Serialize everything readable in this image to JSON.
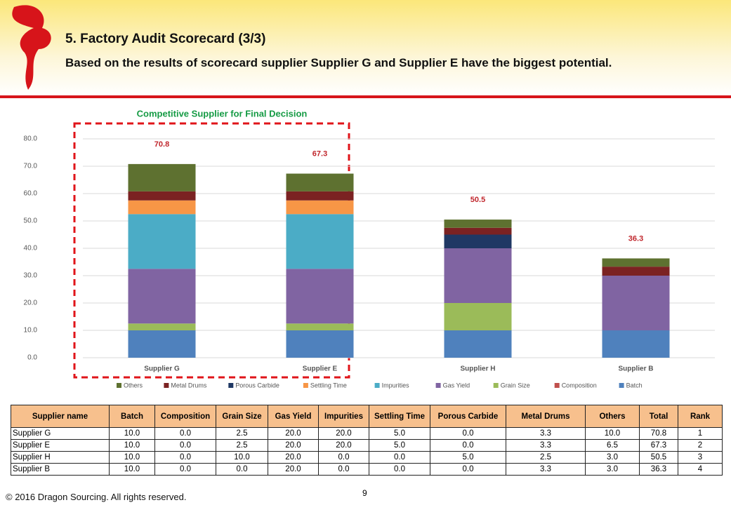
{
  "header": {
    "title": "5. Factory Audit Scorecard (3/3)",
    "subtitle": "Based on the results of scorecard supplier Supplier G and Supplier E have the biggest potential."
  },
  "chart_data": {
    "type": "stacked_bar",
    "title": "Competitive Supplier for Final Decision",
    "categories": [
      "Supplier G",
      "Supplier E",
      "Supplier H",
      "Supplier B"
    ],
    "series": [
      {
        "name": "Batch",
        "color": "#4f81bd",
        "values": [
          10.0,
          10.0,
          10.0,
          10.0
        ]
      },
      {
        "name": "Composition",
        "color": "#c0504d",
        "values": [
          0.0,
          0.0,
          0.0,
          0.0
        ]
      },
      {
        "name": "Grain Size",
        "color": "#9bbb59",
        "values": [
          2.5,
          2.5,
          10.0,
          0.0
        ]
      },
      {
        "name": "Gas Yield",
        "color": "#8064a2",
        "values": [
          20.0,
          20.0,
          20.0,
          20.0
        ]
      },
      {
        "name": "Impurities",
        "color": "#4bacc6",
        "values": [
          20.0,
          20.0,
          0.0,
          0.0
        ]
      },
      {
        "name": "Settling Time",
        "color": "#f79646",
        "values": [
          5.0,
          5.0,
          0.0,
          0.0
        ]
      },
      {
        "name": "Porous Carbide",
        "color": "#1f3864",
        "values": [
          0.0,
          0.0,
          5.0,
          0.0
        ]
      },
      {
        "name": "Metal Drums",
        "color": "#7b2222",
        "values": [
          3.3,
          3.3,
          2.5,
          3.3
        ]
      },
      {
        "name": "Others",
        "color": "#5e7130",
        "values": [
          10.0,
          6.5,
          3.0,
          3.0
        ]
      }
    ],
    "totals": [
      70.8,
      67.3,
      50.5,
      36.3
    ],
    "ylim": [
      0,
      80
    ],
    "yticks": [
      {
        "value": 0,
        "label": "0.0"
      },
      {
        "value": 10,
        "label": "10.0"
      },
      {
        "value": 20,
        "label": "20.0"
      },
      {
        "value": 30,
        "label": "30.0"
      },
      {
        "value": 40,
        "label": "40.0"
      },
      {
        "value": 50,
        "label": "50.0"
      },
      {
        "value": 60,
        "label": "60.0"
      },
      {
        "value": 70,
        "label": "70.0"
      },
      {
        "value": 80,
        "label": "80.0"
      }
    ],
    "grid": true
  },
  "table": {
    "header": [
      "Supplier name",
      "Batch",
      "Composition",
      "Grain Size",
      "Gas Yield",
      "Impurities",
      "Settling Time",
      "Porous Carbide",
      "Metal Drums",
      "Others",
      "Total",
      "Rank"
    ],
    "rows": [
      [
        "Supplier G",
        "10.0",
        "0.0",
        "2.5",
        "20.0",
        "20.0",
        "5.0",
        "0.0",
        "3.3",
        "10.0",
        "70.8",
        "1"
      ],
      [
        "Supplier E",
        "10.0",
        "0.0",
        "2.5",
        "20.0",
        "20.0",
        "5.0",
        "0.0",
        "3.3",
        "6.5",
        "67.3",
        "2"
      ],
      [
        "Supplier H",
        "10.0",
        "0.0",
        "10.0",
        "20.0",
        "0.0",
        "0.0",
        "5.0",
        "2.5",
        "3.0",
        "50.5",
        "3"
      ],
      [
        "Supplier B",
        "10.0",
        "0.0",
        "0.0",
        "20.0",
        "0.0",
        "0.0",
        "0.0",
        "3.3",
        "3.0",
        "36.3",
        "4"
      ]
    ]
  },
  "footer": {
    "copyright": "© 2016 Dragon Sourcing. All rights reserved.",
    "page": "9"
  }
}
